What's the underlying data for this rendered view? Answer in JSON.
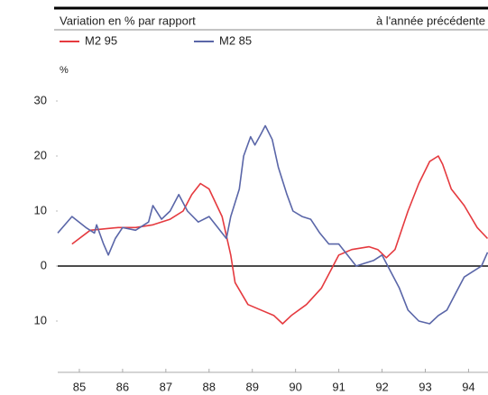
{
  "chart_data": {
    "type": "line",
    "title": "Variation en % par rapport",
    "subtitle": "à l'année précédente",
    "y_label": "%",
    "series": [
      {
        "name": "M2 95",
        "color": "#e53a3f",
        "x": [
          84.83,
          85.25,
          85.9,
          86.3,
          86.7,
          87.1,
          87.4,
          87.6,
          87.8,
          88.0,
          88.3,
          88.5,
          88.6,
          88.9,
          89.2,
          89.5,
          89.7,
          89.9,
          90.25,
          90.6,
          90.8,
          91.0,
          91.3,
          91.7,
          91.9,
          92.1,
          92.3,
          92.6,
          92.85,
          93.1,
          93.3,
          93.4,
          93.6,
          93.9,
          94.2,
          94.44
        ],
        "values": [
          4,
          6.5,
          7,
          7,
          7.5,
          8.5,
          10,
          13,
          15,
          14,
          9,
          2,
          -3,
          -7,
          -8,
          -9,
          -10.5,
          -9,
          -7,
          -4,
          -1,
          2,
          3,
          3.5,
          3,
          1.5,
          3,
          10,
          15,
          19,
          20,
          18.5,
          14,
          11,
          7,
          5
        ]
      },
      {
        "name": "M2 85",
        "color": "#5a66a8",
        "x": [
          84.5,
          84.83,
          85.15,
          85.35,
          85.4,
          85.56,
          85.67,
          85.83,
          86.0,
          86.3,
          86.6,
          86.7,
          86.9,
          87.1,
          87.3,
          87.5,
          87.75,
          88.0,
          88.2,
          88.4,
          88.5,
          88.7,
          88.8,
          88.96,
          89.06,
          89.2,
          89.3,
          89.46,
          89.6,
          89.8,
          89.94,
          90.15,
          90.35,
          90.56,
          90.77,
          91.0,
          91.2,
          91.4,
          91.6,
          91.8,
          92.0,
          92.2,
          92.4,
          92.6,
          92.85,
          93.1,
          93.3,
          93.5,
          93.7,
          93.9,
          94.1,
          94.3,
          94.44
        ],
        "values": [
          6,
          9,
          7,
          6,
          7.5,
          4,
          2,
          5,
          7,
          6.5,
          8,
          11,
          8.5,
          10,
          13,
          10,
          8,
          9,
          7,
          5,
          9,
          14,
          20,
          23.5,
          22,
          24,
          25.5,
          23,
          18,
          13,
          10,
          9,
          8.5,
          6,
          4,
          4,
          2,
          0,
          0.5,
          1,
          2,
          -1,
          -4,
          -8,
          -10,
          -10.5,
          -9,
          -8,
          -5,
          -2,
          -1,
          0,
          2.5
        ]
      }
    ],
    "xlim": [
      84.5,
      94.45
    ],
    "xticks": [
      85,
      86,
      87,
      88,
      89,
      90,
      91,
      92,
      93,
      94
    ],
    "ylim": [
      -19,
      33
    ],
    "yticks": [
      30,
      20,
      10,
      0,
      {
        "value": -10,
        "label": "10"
      }
    ]
  }
}
